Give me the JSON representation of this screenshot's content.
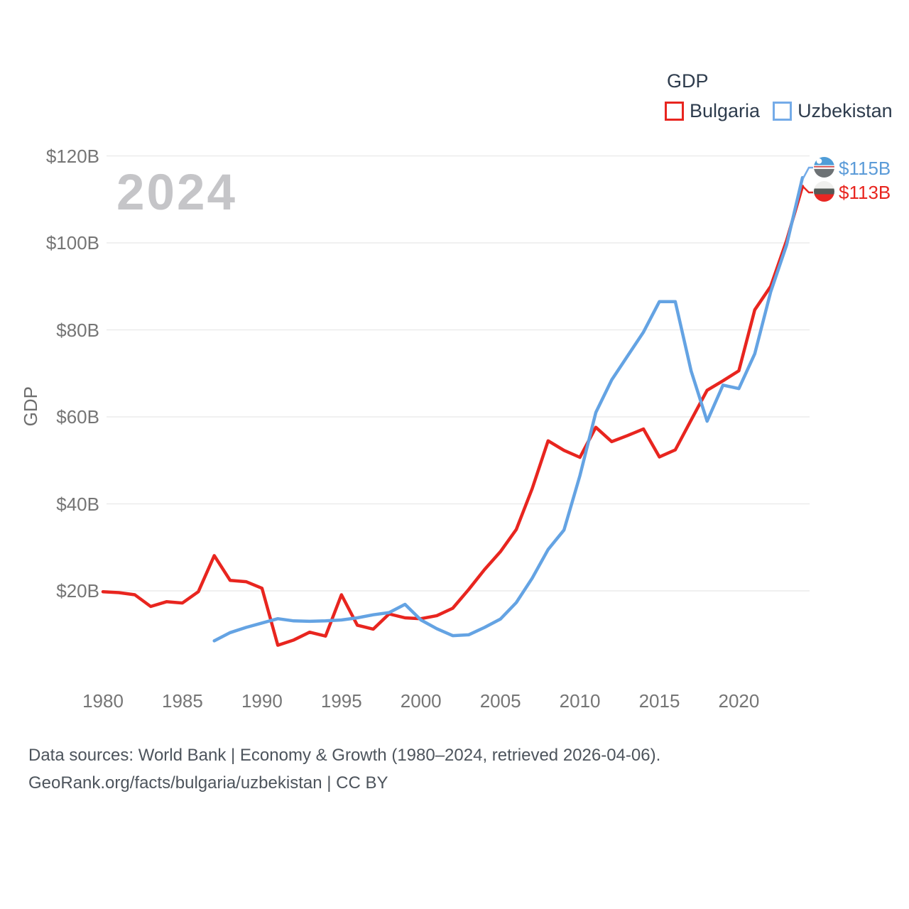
{
  "watermark": {
    "text": "2024"
  },
  "legend": {
    "title": "GDP",
    "series": [
      {
        "label": "Bulgaria",
        "color": "#e8251f"
      },
      {
        "label": "Uzbekistan",
        "color": "#74abe8"
      }
    ]
  },
  "y_axis": {
    "label": "GDP",
    "ticks": [
      {
        "label": "$120B",
        "value": 120
      },
      {
        "label": "$100B",
        "value": 100
      },
      {
        "label": "$80B",
        "value": 80
      },
      {
        "label": "$60B",
        "value": 60
      },
      {
        "label": "$40B",
        "value": 40
      },
      {
        "label": "$20B",
        "value": 20
      }
    ]
  },
  "x_axis": {
    "ticks": [
      {
        "label": "1980",
        "value": 1980
      },
      {
        "label": "1985",
        "value": 1985
      },
      {
        "label": "1990",
        "value": 1990
      },
      {
        "label": "1995",
        "value": 1995
      },
      {
        "label": "2000",
        "value": 2000
      },
      {
        "label": "2005",
        "value": 2005
      },
      {
        "label": "2010",
        "value": 2010
      },
      {
        "label": "2015",
        "value": 2015
      },
      {
        "label": "2020",
        "value": 2020
      }
    ]
  },
  "end_labels": [
    {
      "country": "Uzbekistan",
      "value": "$115B",
      "color": "#5b9bd8",
      "flag": "uzbekistan-flag"
    },
    {
      "country": "Bulgaria",
      "value": "$113B",
      "color": "#e8251f",
      "flag": "bulgaria-flag"
    }
  ],
  "footer": {
    "line1": "Data sources: World Bank | Economy & Growth (1980–2024, retrieved 2026-04-06).",
    "line2": "GeoRank.org/facts/bulgaria/uzbekistan | CC BY"
  },
  "chart_data": {
    "type": "line",
    "title": "GDP",
    "ylabel": "GDP",
    "units": "USD billions",
    "x_range": [
      1980,
      2024
    ],
    "ylim": [
      0,
      125
    ],
    "grid": "horizontal",
    "legend_position": "top-right",
    "x": [
      1980,
      1981,
      1982,
      1983,
      1984,
      1985,
      1986,
      1987,
      1988,
      1989,
      1990,
      1991,
      1992,
      1993,
      1994,
      1995,
      1996,
      1997,
      1998,
      1999,
      2000,
      2001,
      2002,
      2003,
      2004,
      2005,
      2006,
      2007,
      2008,
      2009,
      2010,
      2011,
      2012,
      2013,
      2014,
      2015,
      2016,
      2017,
      2018,
      2019,
      2020,
      2021,
      2022,
      2023,
      2024
    ],
    "series": [
      {
        "name": "Bulgaria",
        "color": "#e8251f",
        "values": [
          19.8,
          19.6,
          19.1,
          16.4,
          17.5,
          17.2,
          19.8,
          28.1,
          22.4,
          22.1,
          20.6,
          7.5,
          8.7,
          10.5,
          9.6,
          19.1,
          12.1,
          11.2,
          14.7,
          13.8,
          13.6,
          14.3,
          16.0,
          20.3,
          24.9,
          29.0,
          34.1,
          43.5,
          54.5,
          52.3,
          50.7,
          57.6,
          54.3,
          55.7,
          57.2,
          50.8,
          52.4,
          59.3,
          66.1,
          68.3,
          70.6,
          84.6,
          90.0,
          100.5,
          113.0
        ]
      },
      {
        "name": "Uzbekistan",
        "color": "#64a3e3",
        "values": [
          null,
          null,
          null,
          null,
          null,
          null,
          null,
          8.5,
          10.4,
          11.6,
          12.6,
          13.6,
          13.1,
          13.0,
          13.1,
          13.3,
          13.8,
          14.5,
          15.0,
          16.9,
          13.3,
          11.3,
          9.7,
          9.9,
          11.6,
          13.5,
          17.3,
          22.9,
          29.5,
          34.0,
          46.5,
          61.0,
          68.5,
          74.0,
          79.5,
          86.5,
          86.5,
          70.5,
          59.0,
          67.3,
          66.5,
          74.5,
          88.7,
          99.5,
          115.0
        ]
      }
    ]
  }
}
